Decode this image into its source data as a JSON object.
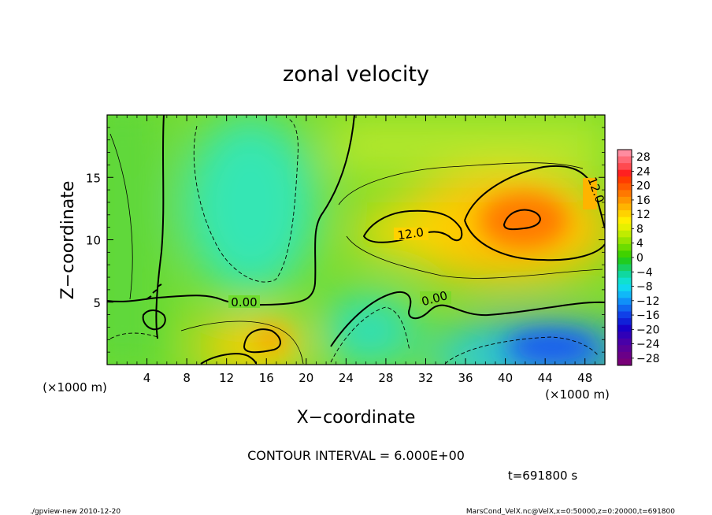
{
  "chart_data": {
    "type": "heatmap",
    "title": "zonal velocity",
    "xlabel": "X−coordinate",
    "ylabel": "Z−coordinate",
    "x_ticks": [
      4,
      8,
      12,
      16,
      20,
      24,
      28,
      32,
      36,
      40,
      44,
      48
    ],
    "y_ticks": [
      5,
      10,
      15
    ],
    "x_unit": "(×1000 m)",
    "y_unit": "(×1000 m)",
    "xlim": [
      0,
      50
    ],
    "ylim": [
      0,
      20
    ],
    "colorbar_ticks": [
      "28",
      "24",
      "20",
      "16",
      "12",
      "8",
      "4",
      "0",
      "−4",
      "−8",
      "−12",
      "−16",
      "−20",
      "−24",
      "−28"
    ],
    "contour_labels": [
      "12.0",
      "12.0",
      "0.00",
      "0.00"
    ],
    "contour_interval": "CONTOUR INTERVAL = 6.000E+00",
    "time_label": "t=691800 s",
    "footer_left": "./gpview-new  2010-12-20",
    "footer_right": "MarsCond_VelX.nc@VelX,x=0:50000,z=0:20000,t=691800",
    "approx_field": {
      "background_u": 4,
      "features": [
        {
          "x": 41.5,
          "z": 11.5,
          "peak_u": 22,
          "desc": "positive max"
        },
        {
          "x": 30,
          "z": 11,
          "peak_u": 12
        },
        {
          "x": 14,
          "z": 0.5,
          "peak_u": 14
        },
        {
          "x": 16.5,
          "z": 2,
          "peak_u": 12
        },
        {
          "x": 15,
          "z": 13,
          "peak_u": -7,
          "desc": "negative region"
        },
        {
          "x": 44,
          "z": 1,
          "peak_u": -14,
          "desc": "negative min"
        },
        {
          "x": 28,
          "z": 3,
          "peak_u": -9
        }
      ]
    }
  }
}
